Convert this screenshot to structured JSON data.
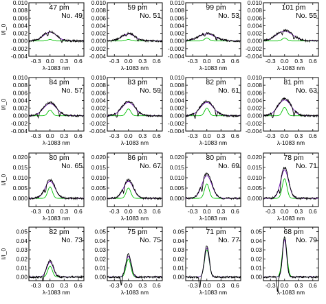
{
  "figure": {
    "colors": {
      "axes": "#000000",
      "observed": "#000000",
      "fit": "#6a0dad",
      "component": "#00c000"
    }
  },
  "chart_data": [
    {
      "type": "line",
      "ylabel": "I/I_0",
      "xlabel": "λ-1083 nm",
      "xticklabels": [
        "-0.3",
        "0.0",
        "0.3",
        "0.6"
      ],
      "xlim": [
        -0.45,
        0.72
      ],
      "ylim": [
        -0.004,
        0.01
      ],
      "yticklabels": [
        "0.010",
        "0.008",
        "0.006",
        "0.004",
        "0.002",
        "0.000",
        "-0.002",
        "-0.004"
      ],
      "annotation": {
        "value": "47 pm",
        "label": "No. 49"
      },
      "series": {
        "amplitude": 0.0025,
        "width": 0.2,
        "peak": 0.0004,
        "dips": [
          -0.05,
          0.25
        ]
      }
    },
    {
      "type": "line",
      "ylabel": "I/I_0",
      "xlabel": "λ-1083 nm",
      "xticklabels": [
        "-0.3",
        "0.0",
        "0.3",
        "0.6"
      ],
      "xlim": [
        -0.45,
        0.72
      ],
      "ylim": [
        -0.004,
        0.01
      ],
      "yticklabels": [
        "0.010",
        "0.008",
        "0.006",
        "0.004",
        "0.002",
        "0.000",
        "-0.002",
        "-0.004"
      ],
      "annotation": {
        "value": "59 pm",
        "label": "No. 51"
      },
      "series": {
        "amplitude": 0.002,
        "width": 0.2,
        "peak": 0.0004,
        "dips": [
          -0.05,
          0.2
        ]
      }
    },
    {
      "type": "line",
      "ylabel": "I/I_0",
      "xlabel": "λ-1083 nm",
      "xticklabels": [
        "-0.3",
        "0.0",
        "0.3",
        "0.6"
      ],
      "xlim": [
        -0.45,
        0.72
      ],
      "ylim": [
        -0.004,
        0.01
      ],
      "yticklabels": [
        "0.010",
        "0.008",
        "0.006",
        "0.004",
        "0.002",
        "0.000",
        "-0.002",
        "-0.004"
      ],
      "annotation": {
        "value": "99 pm",
        "label": "No. 53"
      },
      "series": {
        "amplitude": 0.002,
        "width": 0.25,
        "peak": 0.0008,
        "dips": [
          -0.05,
          0.2
        ]
      }
    },
    {
      "type": "line",
      "ylabel": "I/I_0",
      "xlabel": "λ-1083 nm",
      "xticklabels": [
        "-0.3",
        "0.0",
        "0.3",
        "0.6"
      ],
      "xlim": [
        -0.45,
        0.72
      ],
      "ylim": [
        -0.004,
        0.01
      ],
      "yticklabels": [
        "0.010",
        "0.008",
        "0.006",
        "0.004",
        "0.002",
        "0.000",
        "-0.002",
        "-0.004"
      ],
      "annotation": {
        "value": "101 pm",
        "label": "No. 55"
      },
      "series": {
        "amplitude": 0.0028,
        "width": 0.25,
        "peak": 0.0008,
        "dips": [
          -0.05,
          0.2
        ]
      }
    },
    {
      "type": "line",
      "ylabel": "I/I_0",
      "xlabel": "λ-1083 nm",
      "xticklabels": [
        "-0.3",
        "0.0",
        "0.3",
        "0.6"
      ],
      "xlim": [
        -0.45,
        0.72
      ],
      "ylim": [
        -0.004,
        0.01
      ],
      "yticklabels": [
        "0.010",
        "0.008",
        "0.006",
        "0.004",
        "0.002",
        "0.000",
        "-0.002",
        "-0.004"
      ],
      "annotation": {
        "value": "84 pm",
        "label": "No. 57"
      },
      "series": {
        "amplitude": 0.0035,
        "width": 0.2,
        "peak": 0.0015,
        "dips": [
          -0.25,
          0.2
        ]
      }
    },
    {
      "type": "line",
      "ylabel": "I/I_0",
      "xlabel": "λ-1083 nm",
      "xticklabels": [
        "-0.3",
        "0.0",
        "0.3",
        "0.6"
      ],
      "xlim": [
        -0.45,
        0.72
      ],
      "ylim": [
        -0.004,
        0.01
      ],
      "yticklabels": [
        "0.010",
        "0.008",
        "0.006",
        "0.004",
        "0.002",
        "0.000",
        "-0.002",
        "-0.004"
      ],
      "annotation": {
        "value": "83 pm",
        "label": "No. 59"
      },
      "series": {
        "amplitude": 0.0038,
        "width": 0.2,
        "peak": 0.0018,
        "dips": [
          -0.25,
          0.2
        ]
      }
    },
    {
      "type": "line",
      "ylabel": "I/I_0",
      "xlabel": "λ-1083 nm",
      "xticklabels": [
        "-0.3",
        "0.0",
        "0.3",
        "0.6"
      ],
      "xlim": [
        -0.45,
        0.72
      ],
      "ylim": [
        -0.004,
        0.01
      ],
      "yticklabels": [
        "0.010",
        "0.008",
        "0.006",
        "0.004",
        "0.002",
        "0.000",
        "-0.002",
        "-0.004"
      ],
      "annotation": {
        "value": "82 pm",
        "label": "No. 61"
      },
      "series": {
        "amplitude": 0.0038,
        "width": 0.2,
        "peak": 0.002,
        "dips": [
          -0.25,
          0.2
        ]
      }
    },
    {
      "type": "line",
      "ylabel": "I/I_0",
      "xlabel": "λ-1083 nm",
      "xticklabels": [
        "-0.3",
        "0.0",
        "0.3",
        "0.6"
      ],
      "xlim": [
        -0.45,
        0.72
      ],
      "ylim": [
        -0.004,
        0.01
      ],
      "yticklabels": [
        "0.010",
        "0.008",
        "0.006",
        "0.004",
        "0.002",
        "0.000",
        "-0.002",
        "-0.004"
      ],
      "annotation": {
        "value": "81 pm",
        "label": "No. 63"
      },
      "series": {
        "amplitude": 0.0045,
        "width": 0.2,
        "peak": 0.0022,
        "dips": [
          -0.25,
          0.2
        ]
      }
    },
    {
      "type": "line",
      "ylabel": "I/I_0",
      "xlabel": "λ-1083 nm",
      "xticklabels": [
        "-0.3",
        "0.0",
        "0.3",
        "0.6"
      ],
      "xlim": [
        -0.45,
        0.72
      ],
      "ylim": [
        -0.004,
        0.022
      ],
      "yticklabels": [
        "0.020",
        "0.015",
        "0.010",
        "0.005",
        "0.000"
      ],
      "annotation": {
        "value": "80 pm",
        "label": "No. 65"
      },
      "series": {
        "amplitude": 0.009,
        "width": 0.15,
        "peak": 0.0055,
        "dips": [
          -0.1
        ]
      }
    },
    {
      "type": "line",
      "ylabel": "I/I_0",
      "xlabel": "λ-1083 nm",
      "xticklabels": [
        "-0.3",
        "0.0",
        "0.3",
        "0.6"
      ],
      "xlim": [
        -0.45,
        0.72
      ],
      "ylim": [
        -0.004,
        0.022
      ],
      "yticklabels": [
        "0.020",
        "0.015",
        "0.010",
        "0.005",
        "0.000"
      ],
      "annotation": {
        "value": "86 pm",
        "label": "No. 67"
      },
      "series": {
        "amplitude": 0.009,
        "width": 0.15,
        "peak": 0.005,
        "dips": [
          -0.1
        ]
      }
    },
    {
      "type": "line",
      "ylabel": "I/I_0",
      "xlabel": "λ-1083 nm",
      "xticklabels": [
        "-0.3",
        "0.0",
        "0.3",
        "0.6"
      ],
      "xlim": [
        -0.45,
        0.72
      ],
      "ylim": [
        -0.004,
        0.022
      ],
      "yticklabels": [
        "0.020",
        "0.015",
        "0.010",
        "0.005",
        "0.000"
      ],
      "annotation": {
        "value": "80 pm",
        "label": "No. 69"
      },
      "series": {
        "amplitude": 0.012,
        "width": 0.15,
        "peak": 0.007,
        "dips": [
          -0.1
        ]
      }
    },
    {
      "type": "line",
      "ylabel": "I/I_0",
      "xlabel": "λ-1083 nm",
      "xticklabels": [
        "-0.3",
        "0.0",
        "0.3",
        "0.6"
      ],
      "xlim": [
        -0.45,
        0.72
      ],
      "ylim": [
        -0.004,
        0.022
      ],
      "yticklabels": [
        "0.020",
        "0.015",
        "0.010",
        "0.005",
        "0.000"
      ],
      "annotation": {
        "value": "78 pm",
        "label": "No. 71"
      },
      "series": {
        "amplitude": 0.015,
        "width": 0.12,
        "peak": 0.0095,
        "dips": [
          -0.1
        ]
      }
    },
    {
      "type": "line",
      "ylabel": "I/I_0",
      "xlabel": "λ-1083 nm",
      "xticklabels": [
        "-0.3",
        "0.0",
        "0.3",
        "0.6"
      ],
      "xlim": [
        -0.45,
        0.72
      ],
      "ylim": [
        -0.004,
        0.055
      ],
      "yticklabels": [
        "0.05",
        "0.04",
        "0.03",
        "0.02",
        "0.01",
        "0.00"
      ],
      "annotation": {
        "value": "82 pm",
        "label": "No. 73"
      },
      "series": {
        "amplitude": 0.018,
        "width": 0.1,
        "peak": 0.012,
        "dips": [
          -0.15
        ]
      }
    },
    {
      "type": "line",
      "ylabel": "I/I_0",
      "xlabel": "λ-1083 nm",
      "xticklabels": [
        "-0.3",
        "0.0",
        "0.3",
        "0.6"
      ],
      "xlim": [
        -0.45,
        0.72
      ],
      "ylim": [
        -0.004,
        0.055
      ],
      "yticklabels": [
        "0.05",
        "0.04",
        "0.03",
        "0.02",
        "0.01",
        "0.00"
      ],
      "annotation": {
        "value": "75 pm",
        "label": "No. 75"
      },
      "series": {
        "amplitude": 0.025,
        "width": 0.08,
        "peak": 0.02,
        "dips": [
          -0.15
        ]
      }
    },
    {
      "type": "line",
      "ylabel": "I/I_0",
      "xlabel": "λ-1083 nm",
      "xticklabels": [
        "-0.3",
        "0.0",
        "0.3",
        "0.6"
      ],
      "xlim": [
        -0.45,
        0.72
      ],
      "ylim": [
        -0.004,
        0.055
      ],
      "yticklabels": [
        "0.05",
        "0.04",
        "0.03",
        "0.02",
        "0.01",
        "0.00"
      ],
      "annotation": {
        "value": "71 pm",
        "label": "No. 77"
      },
      "series": {
        "amplitude": 0.035,
        "width": 0.07,
        "peak": 0.03,
        "dips": [
          -0.15
        ]
      }
    },
    {
      "type": "line",
      "ylabel": "I/I_0",
      "xlabel": "λ-1083 nm",
      "xticklabels": [
        "-0.3",
        "0.0",
        "0.3",
        "0.6"
      ],
      "xlim": [
        -0.45,
        0.72
      ],
      "ylim": [
        -0.004,
        0.055
      ],
      "yticklabels": [
        "0.05",
        "0.04",
        "0.03",
        "0.02",
        "0.01",
        "0.00"
      ],
      "annotation": {
        "value": "68 pm",
        "label": "No. 79"
      },
      "series": {
        "amplitude": 0.045,
        "width": 0.06,
        "peak": 0.042,
        "dips": [
          -0.15
        ]
      }
    }
  ]
}
